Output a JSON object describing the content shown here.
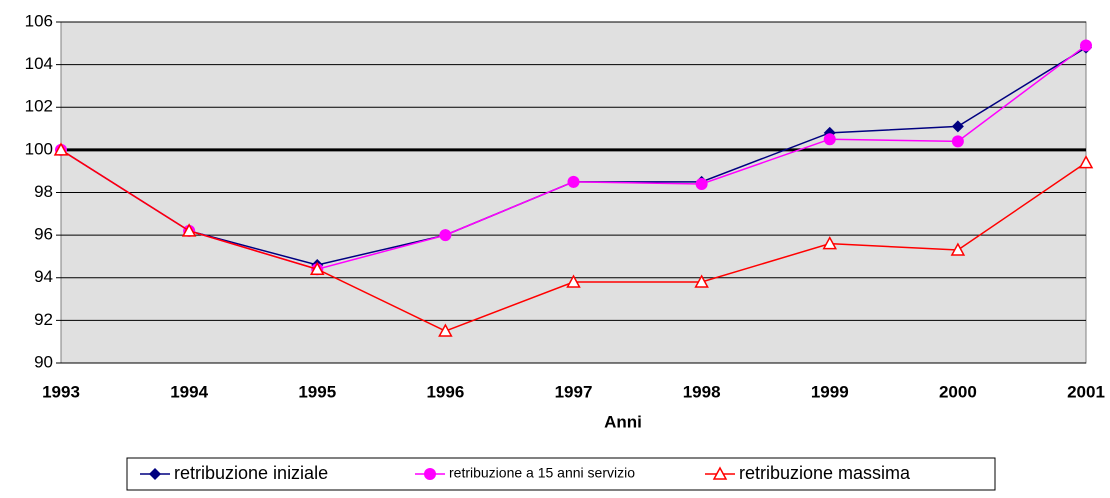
{
  "chart_data": {
    "type": "line",
    "x_label": "Anni",
    "categories": [
      "1993",
      "1994",
      "1995",
      "1996",
      "1997",
      "1998",
      "1999",
      "2000",
      "2001"
    ],
    "series": [
      {
        "name": "retribuzione iniziale",
        "color": "#000080",
        "marker": "diamond",
        "values": [
          100,
          96.2,
          94.6,
          96.0,
          98.5,
          98.5,
          100.8,
          101.1,
          104.8
        ]
      },
      {
        "name": "retribuzione a 15 anni servizio",
        "color": "#ff00ff",
        "marker": "circle",
        "values": [
          100,
          96.2,
          94.4,
          96.0,
          98.5,
          98.4,
          100.5,
          100.4,
          104.9
        ]
      },
      {
        "name": "retribuzione massima",
        "color": "#ff0000",
        "marker": "triangle",
        "values": [
          100,
          96.2,
          94.4,
          91.5,
          93.8,
          93.8,
          95.6,
          95.3,
          99.4
        ]
      }
    ],
    "reference_line": 100,
    "ylim": [
      90,
      106
    ],
    "yticks": [
      90,
      92,
      94,
      96,
      98,
      100,
      102,
      104,
      106
    ],
    "grid": true,
    "legend": "bottom"
  }
}
